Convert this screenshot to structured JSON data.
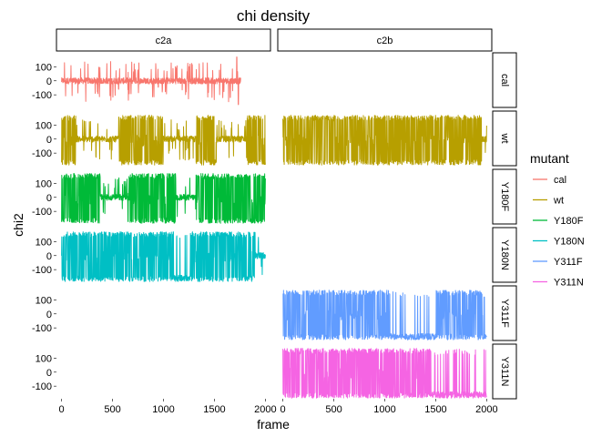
{
  "chart_data": {
    "type": "line",
    "title": "chi density",
    "xlabel": "frame",
    "ylabel": "chi2",
    "facet_columns": [
      "c2a",
      "c2b"
    ],
    "facet_rows": [
      "cal",
      "wt",
      "Y180F",
      "Y180N",
      "Y311F",
      "Y311N"
    ],
    "xlim": [
      -50,
      2050
    ],
    "ylim": [
      -190,
      200
    ],
    "x_ticks": [
      0,
      500,
      1000,
      1500,
      2000
    ],
    "y_ticks": [
      100,
      0,
      -100
    ],
    "legend": {
      "title": "mutant",
      "position": "right",
      "entries": [
        "cal",
        "wt",
        "Y180F",
        "Y180N",
        "Y311F",
        "Y311N"
      ]
    },
    "colors": {
      "cal": "#F8766D",
      "wt": "#B79F00",
      "Y180F": "#00BA38",
      "Y180N": "#00BFC4",
      "Y311F": "#619CFF",
      "Y311N": "#F564E3"
    },
    "series": [
      {
        "facet_column": "c2a",
        "mutant": "cal",
        "x_range": [
          0,
          1760
        ],
        "regimes": [
          [
            0,
            1760,
            "mid"
          ]
        ],
        "spikes": [
          [
            1720,
            170
          ],
          [
            1735,
            -170
          ],
          [
            560,
            -60
          ],
          [
            950,
            -45
          ]
        ]
      },
      {
        "facet_column": "c2a",
        "mutant": "wt",
        "x_range": [
          0,
          2000
        ],
        "regimes": [
          [
            0,
            140,
            "bi"
          ],
          [
            140,
            560,
            "mid"
          ],
          [
            560,
            1000,
            "bi"
          ],
          [
            1000,
            1320,
            "mid"
          ],
          [
            1320,
            1520,
            "bi"
          ],
          [
            1520,
            1820,
            "mid"
          ],
          [
            1820,
            2000,
            "bi"
          ]
        ],
        "spikes": []
      },
      {
        "facet_column": "c2b",
        "mutant": "wt",
        "x_range": [
          0,
          2000
        ],
        "regimes": [
          [
            0,
            1950,
            "bi"
          ],
          [
            1950,
            2000,
            "mid"
          ]
        ],
        "spikes": []
      },
      {
        "facet_column": "c2a",
        "mutant": "Y180F",
        "x_range": [
          0,
          2000
        ],
        "regimes": [
          [
            0,
            380,
            "bi"
          ],
          [
            380,
            650,
            "mid"
          ],
          [
            650,
            1120,
            "bi"
          ],
          [
            1120,
            1320,
            "mid"
          ],
          [
            1320,
            2000,
            "bi"
          ]
        ],
        "spikes": []
      },
      {
        "facet_column": "c2a",
        "mutant": "Y180N",
        "x_range": [
          0,
          2000
        ],
        "regimes": [
          [
            0,
            1100,
            "bi"
          ],
          [
            1100,
            1260,
            "low"
          ],
          [
            1260,
            1900,
            "bi"
          ],
          [
            1900,
            2000,
            "mid"
          ]
        ],
        "spikes": []
      },
      {
        "facet_column": "c2b",
        "mutant": "Y311F",
        "x_range": [
          0,
          2000
        ],
        "regimes": [
          [
            0,
            1050,
            "bi"
          ],
          [
            1050,
            1500,
            "low"
          ],
          [
            1500,
            1960,
            "bi"
          ],
          [
            1960,
            2000,
            "low"
          ]
        ],
        "spikes": []
      },
      {
        "facet_column": "c2b",
        "mutant": "Y311N",
        "x_range": [
          0,
          2000
        ],
        "regimes": [
          [
            0,
            1450,
            "bi"
          ],
          [
            1450,
            2000,
            "low"
          ]
        ],
        "spikes": []
      }
    ]
  }
}
